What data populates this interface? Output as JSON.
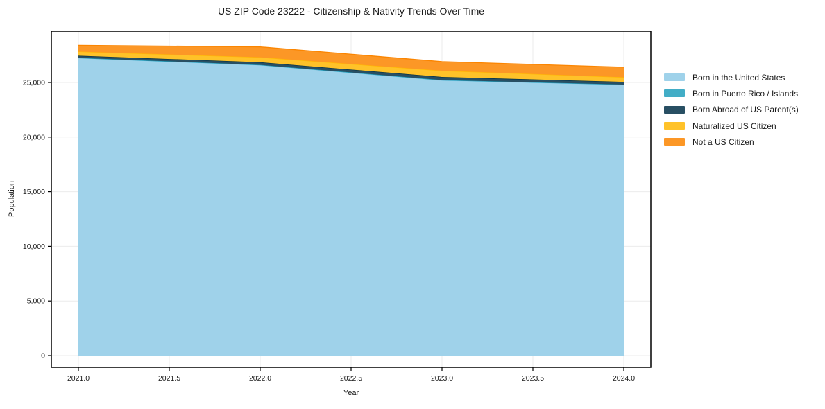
{
  "title": "US ZIP Code 23222 - Citizenship & Nativity Trends Over Time",
  "chart_data": {
    "type": "area",
    "stacked": true,
    "title": "US ZIP Code 23222 - Citizenship & Nativity Trends Over Time",
    "xlabel": "Year",
    "ylabel": "Population",
    "x": [
      2021,
      2022,
      2023,
      2024
    ],
    "series": [
      {
        "name": "Born in the United States",
        "fill": "#9FD2EA",
        "edge": "#8ECAE6",
        "values": [
          27240,
          26590,
          25190,
          24790
        ]
      },
      {
        "name": "Born in Puerto Rico / Islands",
        "fill": "#42ADC6",
        "edge": "#219EBC",
        "values": [
          20,
          20,
          30,
          20
        ]
      },
      {
        "name": "Born Abroad of US Parent(s)",
        "fill": "#284F63",
        "edge": "#023047",
        "values": [
          190,
          250,
          290,
          250
        ]
      },
      {
        "name": "Naturalized US Citizen",
        "fill": "#FFC229",
        "edge": "#FFB703",
        "values": [
          380,
          450,
          570,
          420
        ]
      },
      {
        "name": "Not a US Citizen",
        "fill": "#FC9726",
        "edge": "#FB8500",
        "values": [
          570,
          950,
          830,
          920
        ]
      }
    ],
    "x_ticks": [
      "2021.0",
      "2021.5",
      "2022.0",
      "2022.5",
      "2023.0",
      "2023.5",
      "2024.0"
    ],
    "x_tick_values": [
      2021,
      2021.5,
      2022,
      2022.5,
      2023,
      2023.5,
      2024
    ],
    "y_ticks": [
      "0",
      "5,000",
      "10,000",
      "15,000",
      "20,000",
      "25,000"
    ],
    "y_tick_values": [
      0,
      5000,
      10000,
      15000,
      20000,
      25000
    ],
    "xlim": [
      2020.85,
      2024.15
    ],
    "ylim": [
      -1080,
      29700
    ],
    "grid": true,
    "grid_color": "#ebebeb",
    "frame_color": "#000000",
    "legend_position": "right"
  }
}
